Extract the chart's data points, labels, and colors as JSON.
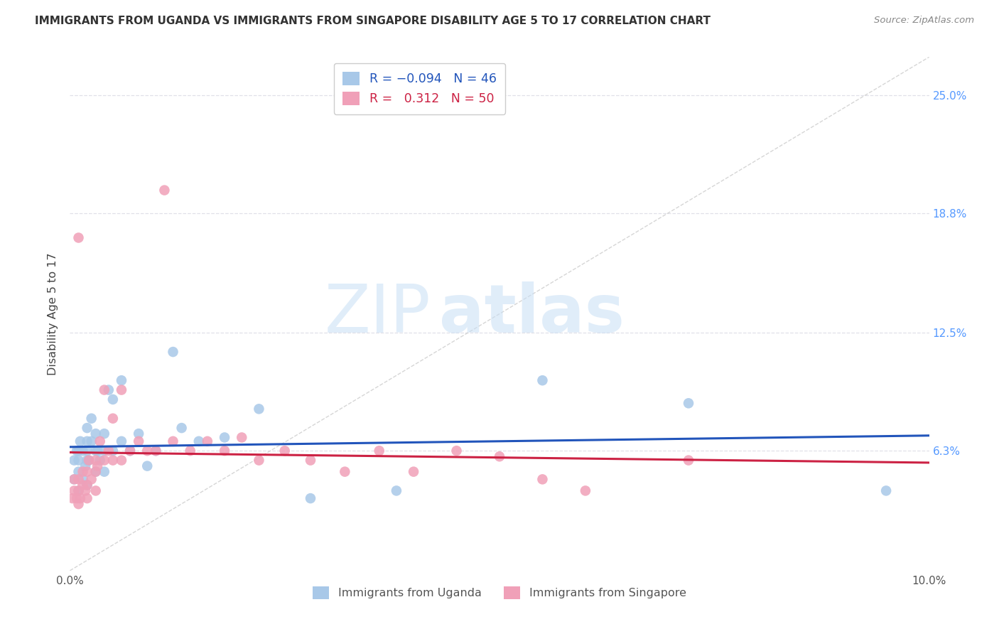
{
  "title": "IMMIGRANTS FROM UGANDA VS IMMIGRANTS FROM SINGAPORE DISABILITY AGE 5 TO 17 CORRELATION CHART",
  "source": "Source: ZipAtlas.com",
  "ylabel": "Disability Age 5 to 17",
  "ytick_labels": [
    "6.3%",
    "12.5%",
    "18.8%",
    "25.0%"
  ],
  "ytick_values": [
    0.063,
    0.125,
    0.188,
    0.25
  ],
  "xlim": [
    0.0,
    0.1
  ],
  "ylim": [
    0.0,
    0.27
  ],
  "color_uganda": "#a8c8e8",
  "color_singapore": "#f0a0b8",
  "color_line_uganda": "#2255bb",
  "color_line_singapore": "#cc2244",
  "color_diagonal": "#cccccc",
  "watermark_zip": "ZIP",
  "watermark_atlas": "atlas",
  "uganda_x": [
    0.0005,
    0.0005,
    0.0008,
    0.001,
    0.001,
    0.001,
    0.001,
    0.0012,
    0.0015,
    0.0015,
    0.0018,
    0.002,
    0.002,
    0.002,
    0.002,
    0.002,
    0.0022,
    0.0025,
    0.0025,
    0.003,
    0.003,
    0.003,
    0.0032,
    0.0035,
    0.004,
    0.004,
    0.004,
    0.0045,
    0.005,
    0.005,
    0.006,
    0.006,
    0.007,
    0.008,
    0.009,
    0.01,
    0.012,
    0.013,
    0.015,
    0.018,
    0.022,
    0.028,
    0.038,
    0.055,
    0.072,
    0.095
  ],
  "uganda_y": [
    0.048,
    0.058,
    0.063,
    0.042,
    0.052,
    0.058,
    0.063,
    0.068,
    0.048,
    0.063,
    0.055,
    0.045,
    0.058,
    0.063,
    0.068,
    0.075,
    0.058,
    0.068,
    0.08,
    0.052,
    0.063,
    0.072,
    0.063,
    0.058,
    0.052,
    0.063,
    0.072,
    0.095,
    0.063,
    0.09,
    0.068,
    0.1,
    0.063,
    0.072,
    0.055,
    0.063,
    0.115,
    0.075,
    0.068,
    0.07,
    0.085,
    0.038,
    0.042,
    0.1,
    0.088,
    0.042
  ],
  "singapore_x": [
    0.0003,
    0.0005,
    0.0005,
    0.0008,
    0.001,
    0.001,
    0.001,
    0.001,
    0.0012,
    0.0015,
    0.0015,
    0.0018,
    0.002,
    0.002,
    0.002,
    0.0022,
    0.0025,
    0.003,
    0.003,
    0.003,
    0.0032,
    0.0035,
    0.004,
    0.004,
    0.0045,
    0.005,
    0.005,
    0.006,
    0.006,
    0.007,
    0.008,
    0.009,
    0.01,
    0.011,
    0.012,
    0.014,
    0.016,
    0.018,
    0.02,
    0.022,
    0.025,
    0.028,
    0.032,
    0.036,
    0.04,
    0.045,
    0.05,
    0.055,
    0.06,
    0.072
  ],
  "singapore_y": [
    0.038,
    0.042,
    0.048,
    0.038,
    0.035,
    0.042,
    0.048,
    0.175,
    0.038,
    0.045,
    0.052,
    0.042,
    0.038,
    0.045,
    0.052,
    0.058,
    0.048,
    0.042,
    0.052,
    0.058,
    0.055,
    0.068,
    0.058,
    0.095,
    0.063,
    0.058,
    0.08,
    0.058,
    0.095,
    0.063,
    0.068,
    0.063,
    0.063,
    0.2,
    0.068,
    0.063,
    0.068,
    0.063,
    0.07,
    0.058,
    0.063,
    0.058,
    0.052,
    0.063,
    0.052,
    0.063,
    0.06,
    0.048,
    0.042,
    0.058
  ]
}
